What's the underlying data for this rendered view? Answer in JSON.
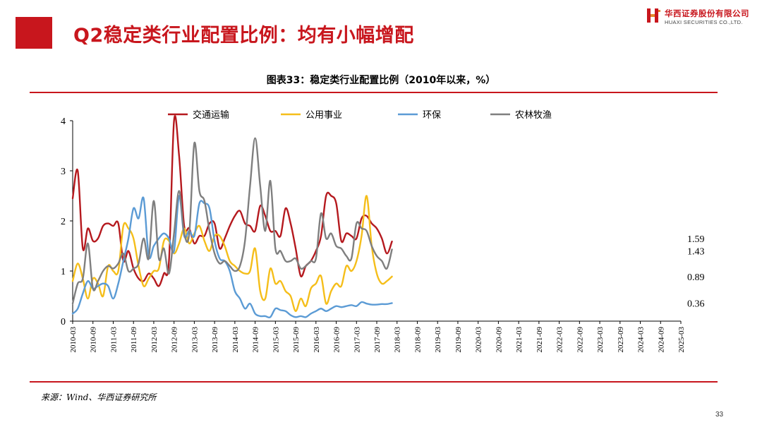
{
  "slide": {
    "title": "Q2稳定类行业配置比例：均有小幅增配",
    "logo_cn": "华西证券股份有限公司",
    "logo_en": "HUAXI SECURITIES CO.,LTD.",
    "source": "来源：Wind、华西证券研究所",
    "page_number": "33"
  },
  "colors": {
    "accent": "#c8161d"
  },
  "chart_data": {
    "type": "line",
    "title": "图表33：稳定类行业配置比例（2010年以来，%）",
    "xlabel": "",
    "ylabel": "",
    "ylim": [
      0,
      4
    ],
    "yticks": [
      0,
      1,
      2,
      3,
      4
    ],
    "grid": false,
    "legend_position": "top",
    "categories": [
      "2010-03",
      "2010-09",
      "2011-03",
      "2011-09",
      "2012-03",
      "2012-09",
      "2013-03",
      "2013-09",
      "2014-03",
      "2014-09",
      "2015-03",
      "2015-09",
      "2016-03",
      "2016-09",
      "2017-03",
      "2017-09",
      "2018-03",
      "2018-09",
      "2019-03",
      "2019-09",
      "2020-03",
      "2020-09",
      "2021-03",
      "2021-09",
      "2022-03",
      "2022-09",
      "2023-03",
      "2023-09",
      "2024-03",
      "2024-09",
      "2025-03"
    ],
    "x": [
      0,
      0.25,
      0.5,
      0.75,
      1,
      1.25,
      1.5,
      1.75,
      2,
      2.25,
      2.5,
      2.75,
      3,
      3.25,
      3.5,
      3.75,
      4,
      4.25,
      4.5,
      4.75,
      5,
      5.25,
      5.5,
      5.75,
      6,
      6.25,
      6.5,
      6.75,
      7,
      7.25,
      7.5,
      7.75,
      8,
      8.25,
      8.5,
      8.75,
      9,
      9.25,
      9.5,
      9.75,
      10,
      10.25,
      10.5,
      10.75,
      11,
      11.25,
      11.5,
      11.75,
      12,
      12.25,
      12.5,
      12.75,
      13,
      13.25,
      13.5,
      13.75,
      14,
      14.25,
      14.5,
      14.75,
      15,
      15.25,
      15.5,
      15.75
    ],
    "series": [
      {
        "name": "交通运输",
        "color": "#b5191e",
        "values": [
          2.45,
          3.0,
          1.45,
          1.85,
          1.6,
          1.65,
          1.9,
          1.95,
          1.9,
          1.95,
          1.2,
          1.4,
          1.05,
          0.85,
          0.8,
          0.95,
          0.85,
          0.7,
          0.95,
          1.2,
          4.0,
          3.3,
          1.9,
          1.85,
          1.55,
          1.7,
          1.7,
          1.95,
          1.95,
          1.45,
          1.65,
          1.9,
          2.1,
          2.2,
          1.95,
          1.9,
          1.8,
          2.3,
          2.1,
          1.8,
          1.8,
          1.7,
          2.25,
          1.95,
          1.45,
          0.9,
          1.1,
          1.2,
          1.4,
          1.7,
          2.5,
          2.5,
          2.35,
          1.6,
          1.75,
          1.7,
          1.65,
          2.05,
          2.1,
          1.95,
          1.85,
          1.65,
          1.35,
          1.59
        ],
        "end_label": "1.59"
      },
      {
        "name": "公用事业",
        "color": "#f5be1a",
        "values": [
          0.8,
          1.15,
          0.85,
          0.45,
          0.85,
          0.75,
          0.5,
          1.1,
          1.0,
          1.0,
          1.9,
          1.85,
          1.65,
          1.1,
          0.7,
          0.85,
          1.0,
          1.05,
          1.6,
          1.6,
          1.35,
          1.55,
          1.85,
          1.55,
          1.75,
          1.9,
          1.6,
          1.4,
          1.7,
          1.7,
          1.5,
          1.2,
          1.1,
          1.0,
          0.95,
          1.0,
          1.45,
          0.6,
          0.45,
          1.05,
          0.75,
          0.8,
          0.6,
          0.5,
          0.2,
          0.45,
          0.3,
          0.65,
          0.75,
          0.9,
          0.35,
          0.6,
          0.75,
          0.7,
          1.1,
          1.0,
          1.2,
          1.7,
          2.5,
          1.5,
          0.95,
          0.75,
          0.8,
          0.89
        ],
        "end_label": "0.89"
      },
      {
        "name": "环保",
        "color": "#5b9bd5",
        "values": [
          0.15,
          0.25,
          0.55,
          0.8,
          0.65,
          0.7,
          0.75,
          0.7,
          0.45,
          0.75,
          1.2,
          1.65,
          2.25,
          2.05,
          2.45,
          1.3,
          1.5,
          1.65,
          1.75,
          1.65,
          1.4,
          2.5,
          1.7,
          1.8,
          1.7,
          2.35,
          2.35,
          2.25,
          1.6,
          1.25,
          1.2,
          1.0,
          0.6,
          0.45,
          0.25,
          0.35,
          0.15,
          0.1,
          0.1,
          0.08,
          0.25,
          0.22,
          0.2,
          0.12,
          0.08,
          0.1,
          0.08,
          0.15,
          0.2,
          0.25,
          0.2,
          0.25,
          0.3,
          0.28,
          0.3,
          0.32,
          0.3,
          0.38,
          0.35,
          0.33,
          0.33,
          0.34,
          0.34,
          0.36
        ],
        "end_label": "0.36"
      },
      {
        "name": "农林牧渔",
        "color": "#7f7f7f",
        "values": [
          0.35,
          0.75,
          0.85,
          1.55,
          0.65,
          0.8,
          1.0,
          1.1,
          1.05,
          1.15,
          1.35,
          1.0,
          1.05,
          1.15,
          1.65,
          1.25,
          2.4,
          1.25,
          1.45,
          0.95,
          1.75,
          2.6,
          1.75,
          1.75,
          3.55,
          2.6,
          2.4,
          1.8,
          1.35,
          1.15,
          1.2,
          1.1,
          1.0,
          1.1,
          1.6,
          2.7,
          3.65,
          2.7,
          1.8,
          2.8,
          1.45,
          1.4,
          1.2,
          1.2,
          1.25,
          1.05,
          1.1,
          1.2,
          1.25,
          2.15,
          1.65,
          1.75,
          1.5,
          1.45,
          1.3,
          1.25,
          1.95,
          1.85,
          1.8,
          1.5,
          1.3,
          1.2,
          1.05,
          1.43
        ],
        "end_label": "1.43"
      }
    ]
  }
}
